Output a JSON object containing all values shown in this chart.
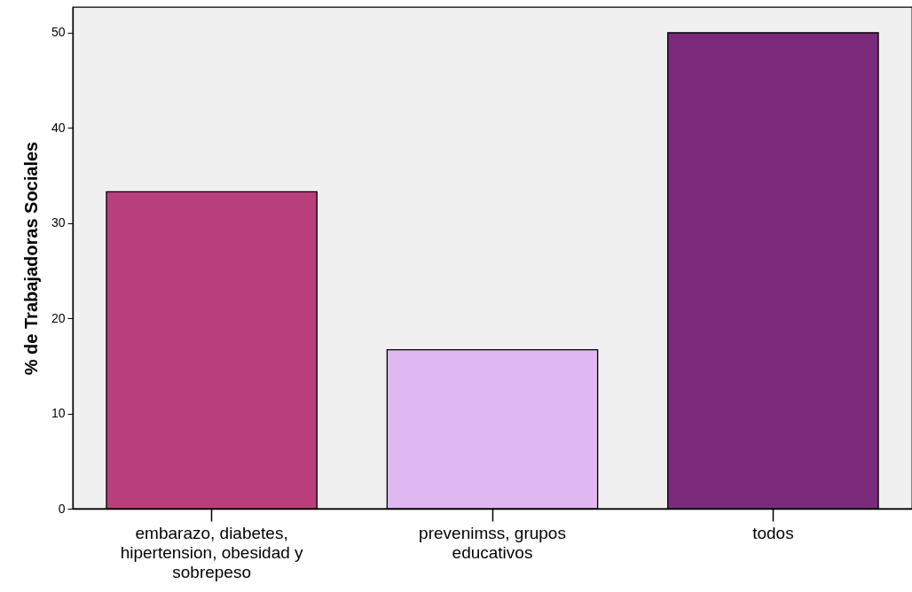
{
  "chart_data": {
    "type": "bar",
    "ylabel": "% de Trabajadoras Sociales",
    "categories": [
      "embarazo, diabetes, hipertension, obesidad y sobrepeso",
      "prevenimss, grupos educativos",
      "todos"
    ],
    "values": [
      33.3,
      16.7,
      50
    ],
    "colors": [
      "#b93f7c",
      "#dfb8f2",
      "#7b2a7c"
    ],
    "ylim": [
      0,
      52.7
    ],
    "yticks": [
      0,
      10,
      20,
      30,
      40,
      50
    ]
  }
}
